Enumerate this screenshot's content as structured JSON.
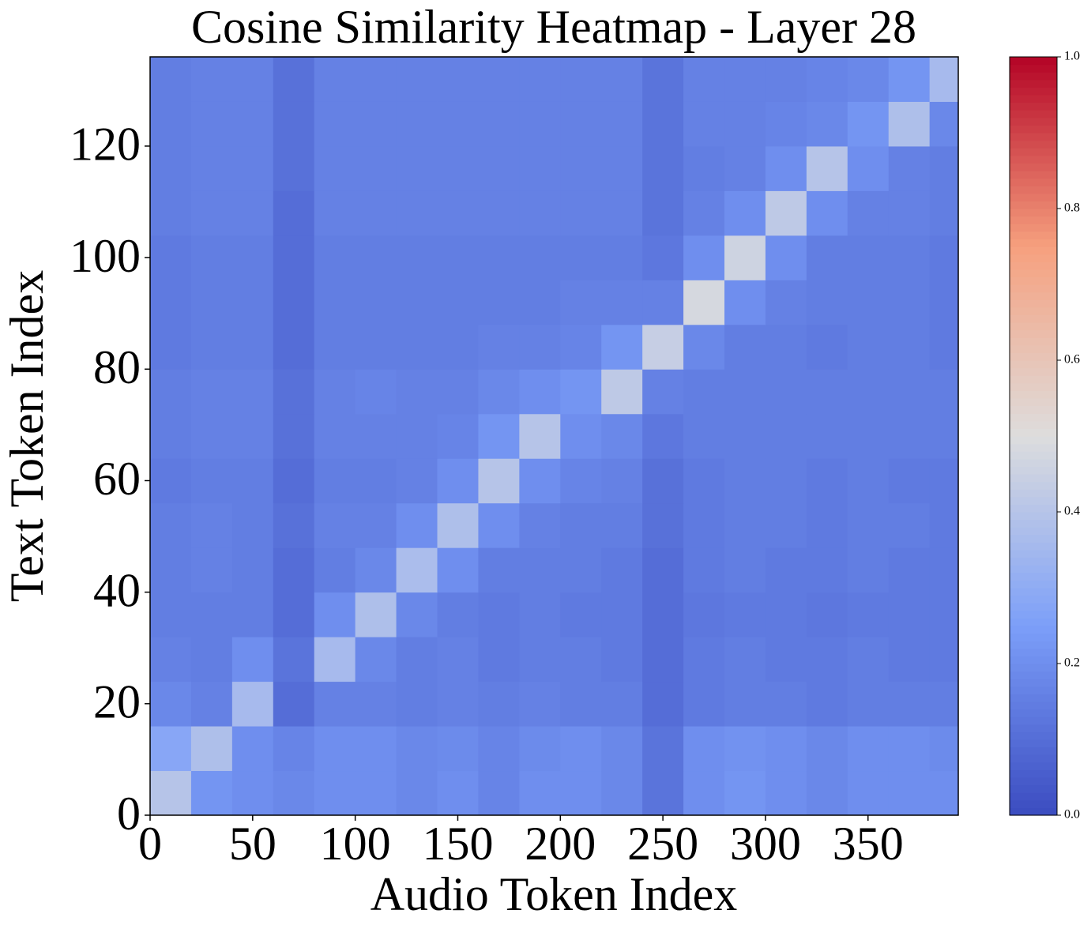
{
  "chart_data": {
    "type": "heatmap",
    "title": "Cosine Similarity Heatmap - Layer 28",
    "x_label": "Audio Token Index",
    "y_label": "Text Token Index",
    "colormap": "coolwarm",
    "xlim": [
      0,
      394
    ],
    "ylim": [
      0,
      136
    ],
    "xticks": [
      0,
      50,
      100,
      150,
      200,
      250,
      300,
      350
    ],
    "yticks": [
      0,
      20,
      40,
      60,
      80,
      100,
      120
    ],
    "x_edges": [
      0,
      20,
      40,
      60,
      80,
      100,
      120,
      140,
      160,
      180,
      200,
      220,
      240,
      260,
      280,
      300,
      320,
      340,
      360,
      380,
      394
    ],
    "y_edges": [
      0,
      8,
      16,
      24,
      32,
      40,
      48,
      56,
      64,
      72,
      80,
      88,
      96,
      104,
      112,
      120,
      128,
      136
    ],
    "clim": [
      0,
      1
    ],
    "cticks": [
      {
        "value": 0,
        "label": "0.0"
      },
      0.2,
      0.4,
      0.6,
      0.8,
      {
        "value": 1,
        "label": "1.0"
      }
    ],
    "values": [
      [
        0.4,
        0.22,
        0.2,
        0.18,
        0.2,
        0.2,
        0.18,
        0.2,
        0.17,
        0.2,
        0.2,
        0.18,
        0.12,
        0.2,
        0.22,
        0.2,
        0.18,
        0.2,
        0.2,
        0.2
      ],
      [
        0.28,
        0.38,
        0.2,
        0.17,
        0.2,
        0.2,
        0.18,
        0.19,
        0.17,
        0.19,
        0.2,
        0.18,
        0.12,
        0.2,
        0.21,
        0.2,
        0.18,
        0.2,
        0.2,
        0.19
      ],
      [
        0.18,
        0.16,
        0.36,
        0.1,
        0.16,
        0.16,
        0.15,
        0.16,
        0.15,
        0.16,
        0.15,
        0.15,
        0.1,
        0.14,
        0.15,
        0.15,
        0.14,
        0.15,
        0.15,
        0.15
      ],
      [
        0.16,
        0.15,
        0.2,
        0.12,
        0.36,
        0.18,
        0.15,
        0.16,
        0.14,
        0.15,
        0.15,
        0.14,
        0.1,
        0.14,
        0.15,
        0.14,
        0.14,
        0.15,
        0.14,
        0.14
      ],
      [
        0.15,
        0.15,
        0.15,
        0.1,
        0.2,
        0.38,
        0.18,
        0.15,
        0.14,
        0.15,
        0.14,
        0.14,
        0.1,
        0.13,
        0.14,
        0.14,
        0.13,
        0.14,
        0.14,
        0.14
      ],
      [
        0.15,
        0.16,
        0.15,
        0.1,
        0.15,
        0.18,
        0.37,
        0.2,
        0.15,
        0.15,
        0.15,
        0.14,
        0.1,
        0.14,
        0.15,
        0.14,
        0.14,
        0.15,
        0.14,
        0.14
      ],
      [
        0.15,
        0.16,
        0.15,
        0.11,
        0.16,
        0.16,
        0.2,
        0.38,
        0.2,
        0.16,
        0.15,
        0.15,
        0.11,
        0.14,
        0.15,
        0.15,
        0.14,
        0.15,
        0.15,
        0.14
      ],
      [
        0.14,
        0.15,
        0.15,
        0.1,
        0.15,
        0.15,
        0.16,
        0.2,
        0.4,
        0.2,
        0.17,
        0.16,
        0.11,
        0.14,
        0.15,
        0.15,
        0.14,
        0.15,
        0.14,
        0.14
      ],
      [
        0.15,
        0.16,
        0.16,
        0.11,
        0.16,
        0.16,
        0.16,
        0.17,
        0.22,
        0.4,
        0.2,
        0.18,
        0.13,
        0.15,
        0.15,
        0.15,
        0.15,
        0.15,
        0.15,
        0.15
      ],
      [
        0.15,
        0.16,
        0.16,
        0.11,
        0.16,
        0.17,
        0.16,
        0.16,
        0.18,
        0.2,
        0.22,
        0.42,
        0.16,
        0.15,
        0.15,
        0.15,
        0.15,
        0.15,
        0.15,
        0.15
      ],
      [
        0.14,
        0.15,
        0.15,
        0.1,
        0.15,
        0.15,
        0.15,
        0.15,
        0.16,
        0.16,
        0.17,
        0.22,
        0.44,
        0.18,
        0.15,
        0.15,
        0.14,
        0.15,
        0.15,
        0.14
      ],
      [
        0.14,
        0.15,
        0.15,
        0.1,
        0.15,
        0.15,
        0.15,
        0.15,
        0.15,
        0.15,
        0.16,
        0.16,
        0.16,
        0.48,
        0.2,
        0.16,
        0.15,
        0.15,
        0.15,
        0.14
      ],
      [
        0.14,
        0.15,
        0.15,
        0.1,
        0.15,
        0.15,
        0.15,
        0.15,
        0.15,
        0.15,
        0.15,
        0.15,
        0.13,
        0.2,
        0.46,
        0.2,
        0.15,
        0.15,
        0.15,
        0.14
      ],
      [
        0.15,
        0.16,
        0.16,
        0.1,
        0.16,
        0.16,
        0.16,
        0.16,
        0.16,
        0.16,
        0.16,
        0.16,
        0.12,
        0.16,
        0.2,
        0.42,
        0.2,
        0.16,
        0.16,
        0.15
      ],
      [
        0.15,
        0.16,
        0.16,
        0.11,
        0.16,
        0.16,
        0.16,
        0.16,
        0.16,
        0.16,
        0.16,
        0.16,
        0.12,
        0.15,
        0.16,
        0.2,
        0.4,
        0.2,
        0.16,
        0.15
      ],
      [
        0.15,
        0.16,
        0.16,
        0.11,
        0.16,
        0.16,
        0.16,
        0.16,
        0.16,
        0.16,
        0.16,
        0.16,
        0.12,
        0.16,
        0.16,
        0.17,
        0.18,
        0.22,
        0.38,
        0.18
      ],
      [
        0.15,
        0.16,
        0.16,
        0.11,
        0.16,
        0.16,
        0.16,
        0.16,
        0.16,
        0.16,
        0.16,
        0.16,
        0.12,
        0.16,
        0.16,
        0.16,
        0.17,
        0.18,
        0.22,
        0.36
      ]
    ]
  }
}
